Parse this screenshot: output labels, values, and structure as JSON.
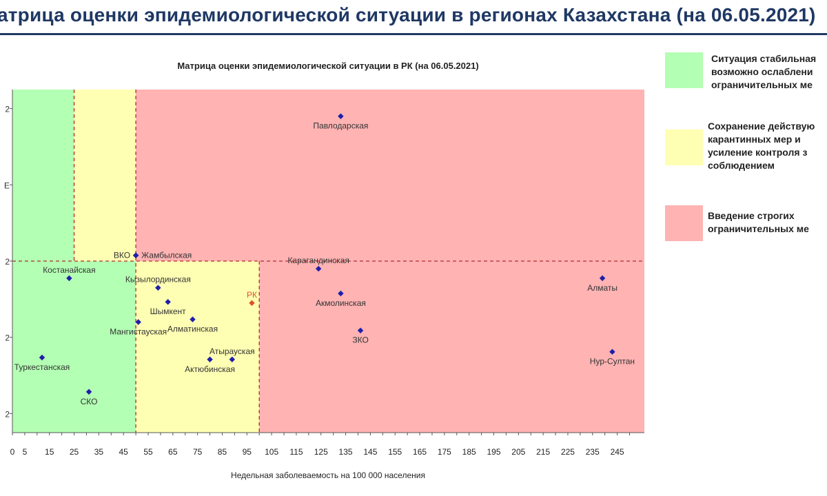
{
  "page_title": "атрица оценки эпидемиологической ситуации в регионах Казахстана (на 06.05.2021)",
  "legend": [
    {
      "color": "#b3ffb3",
      "lines": [
        "Ситуация стабильная",
        "возможно ослаблени",
        "ограничительных ме"
      ]
    },
    {
      "color": "#ffffb3",
      "lines": [
        "Сохранение действую",
        "карантинных мер и",
        "усиление контроля з",
        "соблюдением"
      ]
    },
    {
      "color": "#ffb3b3",
      "lines": [
        "Введение строгих",
        "ограничительных ме"
      ]
    }
  ],
  "chart_data": {
    "type": "scatter",
    "title": "Матрица оценки эпидемиологической ситуации в РК (на 06.05.2021)",
    "xlabel": "Недельная заболеваемость на 100 000 населения",
    "ylabel": "",
    "xlim": [
      0,
      256
    ],
    "ylim": [
      0.35,
      1.25
    ],
    "x_ticks": [
      0,
      5,
      15,
      25,
      35,
      45,
      55,
      65,
      75,
      85,
      95,
      105,
      115,
      125,
      135,
      145,
      155,
      165,
      175,
      185,
      195,
      205,
      215,
      225,
      235,
      245
    ],
    "y_ticks": [
      0.4,
      0.6,
      0.8,
      1.0,
      1.2
    ],
    "y_tick_labels": [
      "2",
      "2",
      "2",
      "E",
      "2"
    ],
    "zones": [
      {
        "color": "#b3ffb3",
        "x": [
          0,
          50
        ],
        "y": [
          0.35,
          0.8
        ]
      },
      {
        "color": "#b3ffb3",
        "x": [
          0,
          25
        ],
        "y": [
          0.8,
          1.25
        ]
      },
      {
        "color": "#ffffb3",
        "x": [
          25,
          50
        ],
        "y": [
          0.8,
          1.25
        ]
      },
      {
        "color": "#ffffb3",
        "x": [
          50,
          100
        ],
        "y": [
          0.35,
          0.8
        ]
      },
      {
        "color": "#ffb3b3",
        "x": [
          50,
          256
        ],
        "y": [
          0.8,
          1.25
        ]
      },
      {
        "color": "#ffb3b3",
        "x": [
          100,
          256
        ],
        "y": [
          0.35,
          0.8
        ]
      }
    ],
    "threshold_lines": [
      {
        "axis": "x",
        "value": 25,
        "from": 0.8,
        "to": 1.25
      },
      {
        "axis": "x",
        "value": 50,
        "from": 0.35,
        "to": 1.25
      },
      {
        "axis": "x",
        "value": 100,
        "from": 0.35,
        "to": 0.8
      },
      {
        "axis": "y",
        "value": 0.8,
        "from": 0,
        "to": 256
      }
    ],
    "points": [
      {
        "label": "Павлодарская",
        "x": 133,
        "y": 1.18,
        "color": "#1f1faa",
        "label_pos": "below"
      },
      {
        "label": "ВКО",
        "x": 50,
        "y": 0.815,
        "color": "#1f1faa",
        "label_pos": "left"
      },
      {
        "label": "Жамбылская",
        "x": 50,
        "y": 0.815,
        "color": "#1f1faa",
        "label_pos": "right"
      },
      {
        "label": "Карагандинская",
        "x": 124,
        "y": 0.78,
        "color": "#1f1faa",
        "label_pos": "above"
      },
      {
        "label": "Костанайская",
        "x": 23,
        "y": 0.755,
        "color": "#1f1faa",
        "label_pos": "above"
      },
      {
        "label": "Кызылординская",
        "x": 59,
        "y": 0.73,
        "color": "#1f1faa",
        "label_pos": "above"
      },
      {
        "label": "Акмолинская",
        "x": 133,
        "y": 0.715,
        "color": "#1f1faa",
        "label_pos": "below"
      },
      {
        "label": "Алматы",
        "x": 239,
        "y": 0.755,
        "color": "#1f1faa",
        "label_pos": "below"
      },
      {
        "label": "РК",
        "x": 97,
        "y": 0.69,
        "color": "#e0502a",
        "label_pos": "above"
      },
      {
        "label": "Шымкент",
        "x": 63,
        "y": 0.693,
        "color": "#1f1faa",
        "label_pos": "below"
      },
      {
        "label": "Алматинская",
        "x": 73,
        "y": 0.647,
        "color": "#1f1faa",
        "label_pos": "below"
      },
      {
        "label": "Мангистауская",
        "x": 51,
        "y": 0.64,
        "color": "#1f1faa",
        "label_pos": "below"
      },
      {
        "label": "ЗКО",
        "x": 141,
        "y": 0.618,
        "color": "#1f1faa",
        "label_pos": "below"
      },
      {
        "label": "Атырауская",
        "x": 89,
        "y": 0.542,
        "color": "#1f1faa",
        "label_pos": "above"
      },
      {
        "label": "Актюбинская",
        "x": 80,
        "y": 0.542,
        "color": "#1f1faa",
        "label_pos": "below"
      },
      {
        "label": "Нур-Султан",
        "x": 243,
        "y": 0.562,
        "color": "#1f1faa",
        "label_pos": "below"
      },
      {
        "label": "Туркестанская",
        "x": 12,
        "y": 0.547,
        "color": "#1f1faa",
        "label_pos": "below"
      },
      {
        "label": "СКО",
        "x": 31,
        "y": 0.457,
        "color": "#1f1faa",
        "label_pos": "below"
      }
    ]
  }
}
